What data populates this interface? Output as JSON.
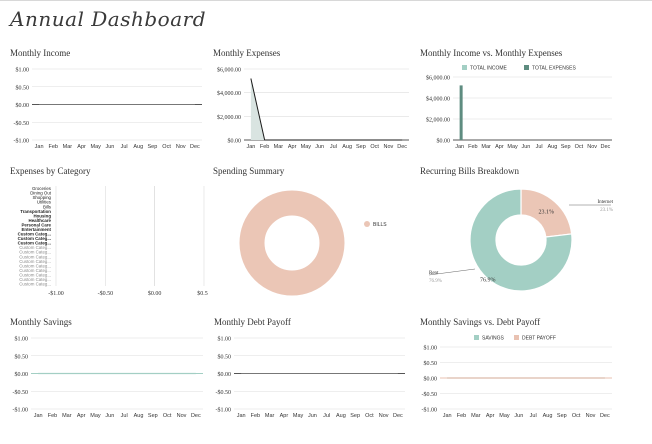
{
  "dashboard": {
    "title": "Annual Dashboard"
  },
  "colors": {
    "grid": "#dddddd",
    "axis": "#555555",
    "label": "#333333",
    "expense_fill": "#d9e4e1",
    "expense_line": "#1a1a1a",
    "teal": "#a3cfc4",
    "dark_teal": "#5e8c80",
    "salmon": "#ebc6b6",
    "savings_line": "#a3cfc4",
    "debt_line": "#e9c2b2"
  },
  "charts": {
    "monthly_income": {
      "title": "Monthly Income",
      "ticks": [
        "$1.00",
        "$0.50",
        "$0.00",
        "-$0.50",
        "-$1.00"
      ]
    },
    "monthly_expenses": {
      "title": "Monthly Expenses",
      "ticks": [
        "$6,000.00",
        "$4,000.00",
        "$2,000.00",
        "$0.00"
      ]
    },
    "income_vs_expenses": {
      "title": "Monthly Income vs. Monthly Expenses",
      "ticks": [
        "$6,000.00",
        "$4,000.00",
        "$2,000.00",
        "$0.00"
      ],
      "legend": [
        "TOTAL INCOME",
        "TOTAL EXPENSES"
      ]
    },
    "expenses_by_category": {
      "title": "Expenses by Category",
      "ticks": [
        "-$1.00",
        "-$0.50",
        "$0.00",
        "$0.50"
      ]
    },
    "spending_summary": {
      "title": "Spending Summary",
      "legend": [
        "BILLS"
      ]
    },
    "recurring_bills": {
      "title": "Recurring Bills Breakdown"
    },
    "monthly_savings": {
      "title": "Monthly Savings",
      "ticks": [
        "$1.00",
        "$0.50",
        "$0.00",
        "-$0.50",
        "-$1.00"
      ]
    },
    "monthly_debt_payoff": {
      "title": "Monthly Debt Payoff",
      "ticks": [
        "$1.00",
        "$0.50",
        "$0.00",
        "-$0.50",
        "-$1.00"
      ]
    },
    "savings_vs_debt": {
      "title": "Monthly Savings vs. Debt Payoff",
      "ticks": [
        "$1.00",
        "$0.50",
        "$0.00",
        "-$0.50",
        "-$1.00"
      ],
      "legend": [
        "SAVINGS",
        "DEBT PAYOFF"
      ]
    }
  },
  "chart_data": [
    {
      "type": "line",
      "title": "Monthly Income",
      "categories": [
        "Jan",
        "Feb",
        "Mar",
        "Apr",
        "May",
        "Jun",
        "Jul",
        "Aug",
        "Sep",
        "Oct",
        "Nov",
        "Dec"
      ],
      "values": [
        0,
        0,
        0,
        0,
        0,
        0,
        0,
        0,
        0,
        0,
        0,
        0
      ],
      "ylim": [
        -1,
        1
      ],
      "yticks": [
        1,
        0.5,
        0,
        -0.5,
        -1
      ]
    },
    {
      "type": "area",
      "title": "Monthly Expenses",
      "categories": [
        "Jan",
        "Feb",
        "Mar",
        "Apr",
        "May",
        "Jun",
        "Jul",
        "Aug",
        "Sep",
        "Oct",
        "Nov",
        "Dec"
      ],
      "values": [
        5200,
        0,
        0,
        0,
        0,
        0,
        0,
        0,
        0,
        0,
        0,
        0
      ],
      "ylim": [
        0,
        6000
      ],
      "yticks": [
        6000,
        4000,
        2000,
        0
      ]
    },
    {
      "type": "bar",
      "title": "Monthly Income vs. Monthly Expenses",
      "categories": [
        "Jan",
        "Feb",
        "Mar",
        "Apr",
        "May",
        "Jun",
        "Jul",
        "Aug",
        "Sep",
        "Oct",
        "Nov",
        "Dec"
      ],
      "series": [
        {
          "name": "TOTAL INCOME",
          "values": [
            0,
            0,
            0,
            0,
            0,
            0,
            0,
            0,
            0,
            0,
            0,
            0
          ]
        },
        {
          "name": "TOTAL EXPENSES",
          "values": [
            5200,
            0,
            0,
            0,
            0,
            0,
            0,
            0,
            0,
            0,
            0,
            0
          ]
        }
      ],
      "ylim": [
        0,
        6000
      ],
      "yticks": [
        6000,
        4000,
        2000,
        0
      ],
      "legend": "top"
    },
    {
      "type": "bar",
      "title": "Expenses by Category",
      "categories": [
        "Groceries",
        "Dining Out",
        "Shopping",
        "Utilities",
        "Bills",
        "Transportation",
        "Housing",
        "Healthcare",
        "Personal Care",
        "Entertainment",
        "Custom Categ...",
        "Custom Categ...",
        "Custom Categ...",
        "Custom Categ...",
        "Custom Categ...",
        "Custom Categ...",
        "Custom Categ...",
        "Custom Categ...",
        "Custom Categ...",
        "Custom Categ...",
        "Custom Categ...",
        "Custom Categ..."
      ],
      "values": [
        0,
        0,
        0,
        0,
        0,
        0,
        0,
        0,
        0,
        0,
        0,
        0,
        0,
        0,
        0,
        0,
        0,
        0,
        0,
        0,
        0,
        0
      ],
      "xlim": [
        -1,
        0.5
      ],
      "xticks": [
        -1,
        -0.5,
        0,
        0.5
      ]
    },
    {
      "type": "pie",
      "title": "Spending Summary",
      "labels": [
        "BILLS"
      ],
      "values": [
        100
      ],
      "legend": "right"
    },
    {
      "type": "pie",
      "title": "Recurring Bills Breakdown",
      "labels": [
        "Rent",
        "Internet"
      ],
      "values": [
        76.9,
        23.1
      ],
      "data_labels": [
        "76.9%",
        "23.1%"
      ]
    },
    {
      "type": "line",
      "title": "Monthly Savings",
      "categories": [
        "Jan",
        "Feb",
        "Mar",
        "Apr",
        "May",
        "Jun",
        "Jul",
        "Aug",
        "Sep",
        "Oct",
        "Nov",
        "Dec"
      ],
      "values": [
        0,
        0,
        0,
        0,
        0,
        0,
        0,
        0,
        0,
        0,
        0,
        0
      ],
      "ylim": [
        -1,
        1
      ],
      "yticks": [
        1,
        0.5,
        0,
        -0.5,
        -1
      ]
    },
    {
      "type": "line",
      "title": "Monthly Debt Payoff",
      "categories": [
        "Jan",
        "Feb",
        "Mar",
        "Apr",
        "May",
        "Jun",
        "Jul",
        "Aug",
        "Sep",
        "Oct",
        "Nov",
        "Dec"
      ],
      "values": [
        0,
        0,
        0,
        0,
        0,
        0,
        0,
        0,
        0,
        0,
        0,
        0
      ],
      "ylim": [
        -1,
        1
      ],
      "yticks": [
        1,
        0.5,
        0,
        -0.5,
        -1
      ]
    },
    {
      "type": "line",
      "title": "Monthly Savings vs. Debt Payoff",
      "categories": [
        "Jan",
        "Feb",
        "Mar",
        "Apr",
        "May",
        "Jun",
        "Jul",
        "Aug",
        "Sep",
        "Oct",
        "Nov",
        "Dec"
      ],
      "series": [
        {
          "name": "SAVINGS",
          "values": [
            0,
            0,
            0,
            0,
            0,
            0,
            0,
            0,
            0,
            0,
            0,
            0
          ]
        },
        {
          "name": "DEBT PAYOFF",
          "values": [
            0,
            0,
            0,
            0,
            0,
            0,
            0,
            0,
            0,
            0,
            0,
            0
          ]
        }
      ],
      "ylim": [
        -1,
        1
      ],
      "yticks": [
        1,
        0.5,
        0,
        -0.5,
        -1
      ],
      "legend": "top"
    }
  ]
}
